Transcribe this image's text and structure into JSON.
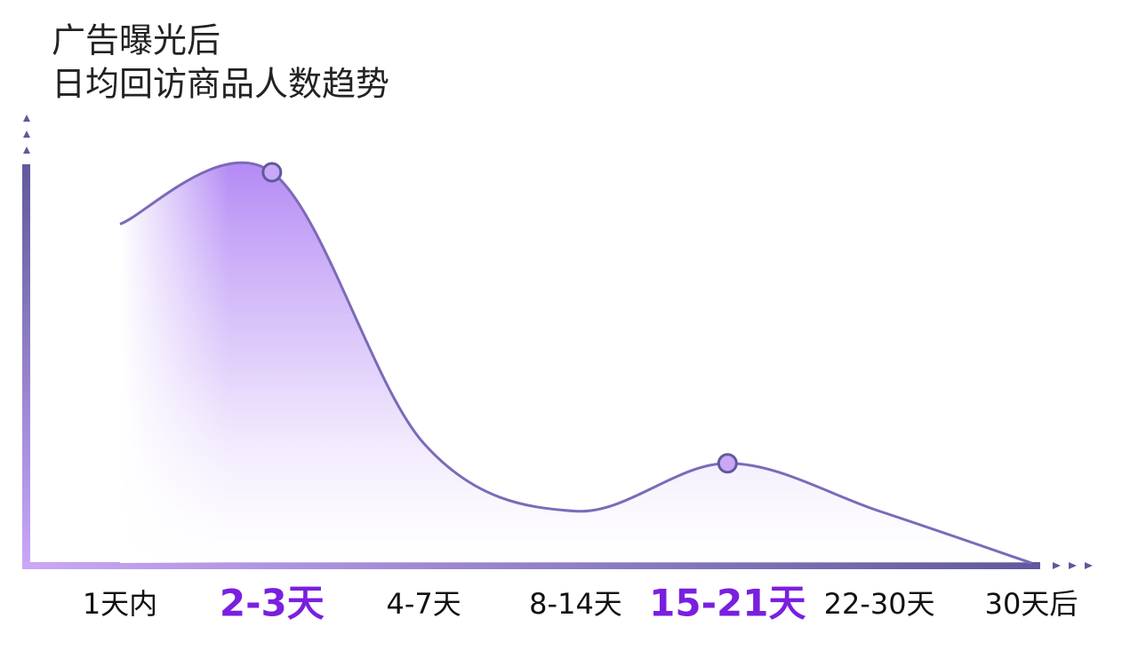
{
  "chart_data": {
    "type": "area",
    "title": "广告曝光后",
    "subtitle": "日均回访商品人数趋势",
    "categories": [
      "1天内",
      "2-3天",
      "4-7天",
      "8-14天",
      "15-21天",
      "22-30天",
      "30天后"
    ],
    "values": [
      85,
      98,
      30,
      13,
      25,
      13,
      0
    ],
    "ylim": [
      0,
      100
    ],
    "highlight": [
      1,
      4
    ],
    "color": "#7b6bb8",
    "highlight_color": "#7a1fe0"
  }
}
